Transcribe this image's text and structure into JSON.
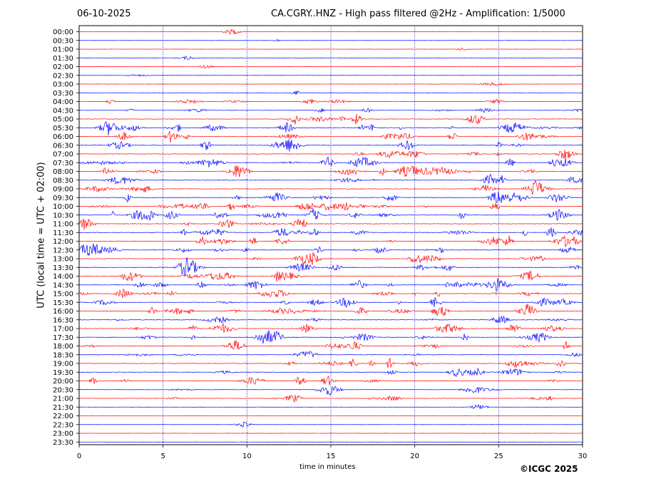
{
  "header": {
    "date": "06-10-2025",
    "title": "CA.CGRY..HNZ - High pass filtered @2Hz - Amplification: 1/5000"
  },
  "footer": {
    "copyright": "©ICGC 2025"
  },
  "colors": {
    "red": "#ff0000",
    "blue": "#0000ff",
    "grid": "#0000aa"
  },
  "chart_data": {
    "type": "line",
    "title": "CA.CGRY..HNZ - High pass filtered @2Hz - Amplification: 1/5000",
    "xlabel": "time in minutes",
    "ylabel": "UTC (local time = UTC + 02:00)",
    "xlim": [
      0,
      30
    ],
    "x_ticks": [
      "0",
      "5",
      "10",
      "15",
      "20",
      "25",
      "30"
    ],
    "y_ticks": [
      "00:00",
      "00:30",
      "01:00",
      "01:30",
      "02:00",
      "02:30",
      "03:00",
      "03:30",
      "04:00",
      "04:30",
      "05:00",
      "05:30",
      "06:00",
      "06:30",
      "07:00",
      "07:30",
      "08:00",
      "08:30",
      "09:00",
      "09:30",
      "10:00",
      "10:30",
      "11:00",
      "11:30",
      "12:00",
      "12:30",
      "13:00",
      "13:30",
      "14:00",
      "14:30",
      "15:00",
      "15:30",
      "16:00",
      "16:30",
      "17:00",
      "17:30",
      "18:00",
      "18:30",
      "19:00",
      "19:30",
      "20:00",
      "20:30",
      "21:00",
      "21:30",
      "22:00",
      "22:30",
      "23:00",
      "23:30"
    ],
    "vertical_grid_minutes": [
      5,
      10,
      15,
      20,
      25
    ],
    "trace_colors_alternate": [
      "red",
      "blue"
    ]
  }
}
